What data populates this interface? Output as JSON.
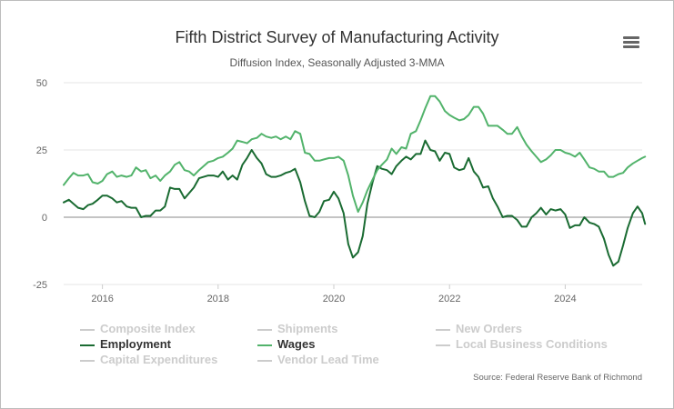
{
  "header": {
    "title": "Fifth District Survey of Manufacturing Activity",
    "subtitle": "Diffusion Index, Seasonally Adjusted 3-MMA"
  },
  "menu_icon": "hamburger-menu-icon",
  "legend": [
    {
      "label": "Composite Index",
      "active": false,
      "color": "#cccccc"
    },
    {
      "label": "Shipments",
      "active": false,
      "color": "#cccccc"
    },
    {
      "label": "New Orders",
      "active": false,
      "color": "#cccccc"
    },
    {
      "label": "Employment",
      "active": true,
      "color": "#1a6b32"
    },
    {
      "label": "Wages",
      "active": true,
      "color": "#52b36b"
    },
    {
      "label": "Local Business Conditions",
      "active": false,
      "color": "#cccccc"
    },
    {
      "label": "Capital Expenditures",
      "active": false,
      "color": "#cccccc"
    },
    {
      "label": "Vendor Lead Time",
      "active": false,
      "color": "#cccccc"
    }
  ],
  "source": "Source: Federal Reserve Bank of Richmond",
  "chart_data": {
    "type": "line",
    "title": "Fifth District Survey of Manufacturing Activity",
    "subtitle": "Diffusion Index, Seasonally Adjusted 3-MMA",
    "xlim": [
      2015.33,
      2025.33
    ],
    "ylim": [
      -25,
      50
    ],
    "x_ticks": [
      2016,
      2018,
      2020,
      2022,
      2024
    ],
    "x_tick_labels": [
      "2016",
      "2018",
      "2020",
      "2022",
      "2024"
    ],
    "y_ticks": [
      -25,
      0,
      25,
      50
    ],
    "y_tick_labels": [
      "-25",
      "0",
      "25",
      "50"
    ],
    "zero_line": true,
    "grid": "horizontal",
    "series": [
      {
        "name": "Employment",
        "color": "#1a6b32",
        "points": [
          [
            2015.33,
            5.5
          ],
          [
            2015.42,
            6.5
          ],
          [
            2015.5,
            5
          ],
          [
            2015.58,
            3.5
          ],
          [
            2015.67,
            3
          ],
          [
            2015.75,
            4.5
          ],
          [
            2015.83,
            5
          ],
          [
            2015.92,
            6.5
          ],
          [
            2016.0,
            8
          ],
          [
            2016.08,
            8
          ],
          [
            2016.17,
            7
          ],
          [
            2016.25,
            5.5
          ],
          [
            2016.33,
            6
          ],
          [
            2016.42,
            4
          ],
          [
            2016.5,
            3.5
          ],
          [
            2016.58,
            3.5
          ],
          [
            2016.67,
            0
          ],
          [
            2016.75,
            0.5
          ],
          [
            2016.83,
            0.5
          ],
          [
            2016.92,
            2.5
          ],
          [
            2017.0,
            2.5
          ],
          [
            2017.08,
            4
          ],
          [
            2017.17,
            11
          ],
          [
            2017.25,
            10.5
          ],
          [
            2017.33,
            10.5
          ],
          [
            2017.42,
            7
          ],
          [
            2017.5,
            9
          ],
          [
            2017.58,
            11
          ],
          [
            2017.67,
            14.5
          ],
          [
            2017.75,
            15
          ],
          [
            2017.83,
            15.5
          ],
          [
            2017.92,
            15.5
          ],
          [
            2018.0,
            15
          ],
          [
            2018.08,
            17
          ],
          [
            2018.17,
            14
          ],
          [
            2018.25,
            15.5
          ],
          [
            2018.33,
            14
          ],
          [
            2018.42,
            19.5
          ],
          [
            2018.5,
            22
          ],
          [
            2018.58,
            25
          ],
          [
            2018.67,
            22
          ],
          [
            2018.75,
            20
          ],
          [
            2018.83,
            16
          ],
          [
            2018.92,
            15
          ],
          [
            2019.0,
            15
          ],
          [
            2019.08,
            15.5
          ],
          [
            2019.17,
            16.5
          ],
          [
            2019.25,
            17
          ],
          [
            2019.33,
            18
          ],
          [
            2019.42,
            13
          ],
          [
            2019.5,
            6
          ],
          [
            2019.58,
            0.5
          ],
          [
            2019.67,
            0
          ],
          [
            2019.75,
            2
          ],
          [
            2019.83,
            6
          ],
          [
            2019.92,
            6.5
          ],
          [
            2020.0,
            9.5
          ],
          [
            2020.08,
            7
          ],
          [
            2020.17,
            1.5
          ],
          [
            2020.25,
            -10
          ],
          [
            2020.33,
            -15
          ],
          [
            2020.42,
            -13
          ],
          [
            2020.5,
            -7
          ],
          [
            2020.58,
            5
          ],
          [
            2020.67,
            13
          ],
          [
            2020.75,
            19
          ],
          [
            2020.83,
            18
          ],
          [
            2020.92,
            17.5
          ],
          [
            2021.0,
            16
          ],
          [
            2021.08,
            19
          ],
          [
            2021.17,
            21
          ],
          [
            2021.25,
            22.5
          ],
          [
            2021.33,
            21.5
          ],
          [
            2021.42,
            23.5
          ],
          [
            2021.5,
            23.5
          ],
          [
            2021.58,
            28.5
          ],
          [
            2021.67,
            25
          ],
          [
            2021.75,
            24.5
          ],
          [
            2021.83,
            21
          ],
          [
            2021.92,
            24
          ],
          [
            2022.0,
            23.5
          ],
          [
            2022.08,
            18.5
          ],
          [
            2022.17,
            17.5
          ],
          [
            2022.25,
            18
          ],
          [
            2022.33,
            22
          ],
          [
            2022.42,
            17
          ],
          [
            2022.5,
            15
          ],
          [
            2022.58,
            11
          ],
          [
            2022.67,
            11.5
          ],
          [
            2022.75,
            7
          ],
          [
            2022.83,
            4
          ],
          [
            2022.92,
            0
          ],
          [
            2023.0,
            0.5
          ],
          [
            2023.08,
            0.5
          ],
          [
            2023.17,
            -1
          ],
          [
            2023.25,
            -3.5
          ],
          [
            2023.33,
            -3.5
          ],
          [
            2023.42,
            0
          ],
          [
            2023.5,
            1.5
          ],
          [
            2023.58,
            3.5
          ],
          [
            2023.67,
            1
          ],
          [
            2023.75,
            3
          ],
          [
            2023.83,
            2.5
          ],
          [
            2023.92,
            3
          ],
          [
            2024.0,
            1
          ],
          [
            2024.08,
            -4
          ],
          [
            2024.17,
            -3
          ],
          [
            2024.25,
            -3
          ],
          [
            2024.33,
            0
          ],
          [
            2024.42,
            -2
          ],
          [
            2024.5,
            -2.5
          ],
          [
            2024.58,
            -3.5
          ],
          [
            2024.67,
            -8
          ],
          [
            2024.75,
            -14
          ],
          [
            2024.83,
            -18
          ],
          [
            2024.92,
            -16.5
          ],
          [
            2025.0,
            -10.5
          ],
          [
            2025.08,
            -4
          ],
          [
            2025.17,
            1.5
          ],
          [
            2025.25,
            4
          ],
          [
            2025.33,
            1.5
          ],
          [
            2025.38,
            -2.5
          ]
        ]
      },
      {
        "name": "Wages",
        "color": "#52b36b",
        "points": [
          [
            2015.33,
            12
          ],
          [
            2015.42,
            14.5
          ],
          [
            2015.5,
            16.5
          ],
          [
            2015.58,
            15.5
          ],
          [
            2015.67,
            15.5
          ],
          [
            2015.75,
            16
          ],
          [
            2015.83,
            13
          ],
          [
            2015.92,
            12.5
          ],
          [
            2016.0,
            13.5
          ],
          [
            2016.08,
            16
          ],
          [
            2016.17,
            17
          ],
          [
            2016.25,
            15
          ],
          [
            2016.33,
            15.5
          ],
          [
            2016.42,
            15
          ],
          [
            2016.5,
            15.5
          ],
          [
            2016.58,
            18.5
          ],
          [
            2016.67,
            17
          ],
          [
            2016.75,
            17.5
          ],
          [
            2016.83,
            14.5
          ],
          [
            2016.92,
            15.5
          ],
          [
            2017.0,
            13.5
          ],
          [
            2017.08,
            15.5
          ],
          [
            2017.17,
            17
          ],
          [
            2017.25,
            19.5
          ],
          [
            2017.33,
            20.5
          ],
          [
            2017.42,
            17.5
          ],
          [
            2017.5,
            17
          ],
          [
            2017.58,
            15.5
          ],
          [
            2017.67,
            17.5
          ],
          [
            2017.75,
            19
          ],
          [
            2017.83,
            20.5
          ],
          [
            2017.92,
            21
          ],
          [
            2018.0,
            22
          ],
          [
            2018.08,
            22.5
          ],
          [
            2018.17,
            24
          ],
          [
            2018.25,
            25.5
          ],
          [
            2018.33,
            28.5
          ],
          [
            2018.42,
            28
          ],
          [
            2018.5,
            27.5
          ],
          [
            2018.58,
            29
          ],
          [
            2018.67,
            29.5
          ],
          [
            2018.75,
            31
          ],
          [
            2018.83,
            30
          ],
          [
            2018.92,
            29.5
          ],
          [
            2019.0,
            30
          ],
          [
            2019.08,
            29
          ],
          [
            2019.17,
            30
          ],
          [
            2019.25,
            29
          ],
          [
            2019.33,
            32
          ],
          [
            2019.42,
            31
          ],
          [
            2019.5,
            24
          ],
          [
            2019.58,
            23.5
          ],
          [
            2019.67,
            21
          ],
          [
            2019.75,
            21
          ],
          [
            2019.83,
            21.5
          ],
          [
            2019.92,
            22
          ],
          [
            2020.0,
            22
          ],
          [
            2020.08,
            22.5
          ],
          [
            2020.17,
            21
          ],
          [
            2020.25,
            15.5
          ],
          [
            2020.33,
            8
          ],
          [
            2020.42,
            2
          ],
          [
            2020.5,
            5.5
          ],
          [
            2020.58,
            10
          ],
          [
            2020.67,
            14
          ],
          [
            2020.75,
            17.5
          ],
          [
            2020.83,
            19.5
          ],
          [
            2020.92,
            21.5
          ],
          [
            2021.0,
            25.5
          ],
          [
            2021.08,
            23.5
          ],
          [
            2021.17,
            26
          ],
          [
            2021.25,
            25.5
          ],
          [
            2021.33,
            31
          ],
          [
            2021.42,
            32
          ],
          [
            2021.5,
            36
          ],
          [
            2021.58,
            40.5
          ],
          [
            2021.67,
            45
          ],
          [
            2021.75,
            45
          ],
          [
            2021.83,
            43
          ],
          [
            2021.92,
            39.5
          ],
          [
            2022.0,
            38
          ],
          [
            2022.08,
            37
          ],
          [
            2022.17,
            36
          ],
          [
            2022.25,
            36.5
          ],
          [
            2022.33,
            38
          ],
          [
            2022.42,
            41
          ],
          [
            2022.5,
            41
          ],
          [
            2022.58,
            38.5
          ],
          [
            2022.67,
            34
          ],
          [
            2022.75,
            34
          ],
          [
            2022.83,
            34
          ],
          [
            2022.92,
            32.5
          ],
          [
            2023.0,
            31
          ],
          [
            2023.08,
            31
          ],
          [
            2023.17,
            33.5
          ],
          [
            2023.25,
            30
          ],
          [
            2023.33,
            27
          ],
          [
            2023.42,
            24.5
          ],
          [
            2023.5,
            22.5
          ],
          [
            2023.58,
            20.5
          ],
          [
            2023.67,
            21.5
          ],
          [
            2023.75,
            23
          ],
          [
            2023.83,
            25
          ],
          [
            2023.92,
            25
          ],
          [
            2024.0,
            24
          ],
          [
            2024.08,
            23.5
          ],
          [
            2024.17,
            22.5
          ],
          [
            2024.25,
            24
          ],
          [
            2024.33,
            21.5
          ],
          [
            2024.42,
            18.5
          ],
          [
            2024.5,
            18
          ],
          [
            2024.58,
            17
          ],
          [
            2024.67,
            17
          ],
          [
            2024.75,
            15
          ],
          [
            2024.83,
            15
          ],
          [
            2024.92,
            16
          ],
          [
            2025.0,
            16.5
          ],
          [
            2025.08,
            18.5
          ],
          [
            2025.17,
            20
          ],
          [
            2025.25,
            21
          ],
          [
            2025.33,
            22
          ],
          [
            2025.38,
            22.5
          ]
        ]
      }
    ]
  }
}
